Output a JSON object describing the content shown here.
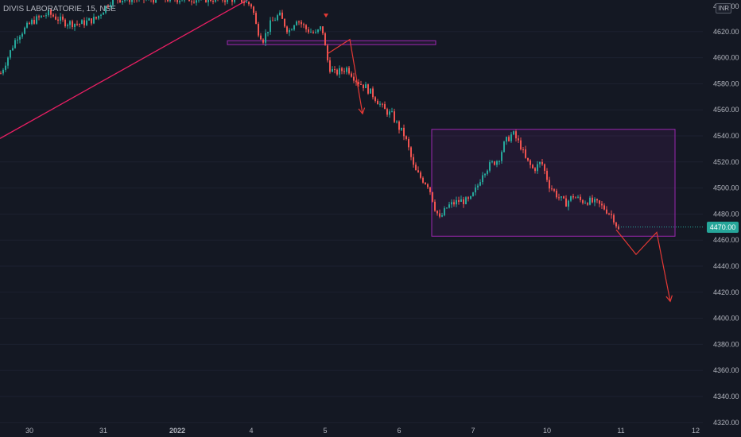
{
  "header": {
    "symbol": "DIVIS LABORATORIE, 15, NSE",
    "currency": "INR"
  },
  "last_price_label": "4470.00",
  "colors": {
    "background": "#141823",
    "up": "#26a69a",
    "down": "#ef5350",
    "trendline": "#e91e63",
    "box_stroke": "#9c27b0",
    "box_fill": "rgba(156,39,176,0.10)",
    "arrow": "#e53935",
    "axis_text": "#b2b5be"
  },
  "chart_data": {
    "type": "candlestick",
    "y_axis": {
      "side": "right",
      "ticks": [
        4620,
        4600,
        4580,
        4560,
        4540,
        4520,
        4500,
        4480,
        4460,
        4440,
        4420,
        4400,
        4380,
        4360,
        4340,
        4320
      ],
      "range": [
        4318,
        4642
      ]
    },
    "x_axis": {
      "tick_labels": [
        "30",
        "31",
        "2022",
        "4",
        "5",
        "6",
        "7",
        "10",
        "11",
        "12"
      ]
    },
    "last_price": 4470,
    "price_path": [
      [
        0,
        4588
      ],
      [
        20,
        4616
      ],
      [
        40,
        4628
      ],
      [
        60,
        4634
      ],
      [
        80,
        4627
      ],
      [
        100,
        4626
      ],
      [
        120,
        4630
      ],
      [
        140,
        4645
      ],
      [
        300,
        4645
      ],
      [
        316,
        4640
      ],
      [
        322,
        4622
      ],
      [
        330,
        4614
      ],
      [
        340,
        4627
      ],
      [
        350,
        4633
      ],
      [
        362,
        4620
      ],
      [
        372,
        4630
      ],
      [
        384,
        4622
      ],
      [
        396,
        4618
      ],
      [
        404,
        4624
      ],
      [
        410,
        4600
      ],
      [
        414,
        4592
      ],
      [
        420,
        4588
      ],
      [
        428,
        4590
      ],
      [
        436,
        4592
      ],
      [
        448,
        4582
      ],
      [
        458,
        4578
      ],
      [
        470,
        4570
      ],
      [
        482,
        4560
      ],
      [
        492,
        4556
      ],
      [
        500,
        4547
      ],
      [
        508,
        4540
      ],
      [
        514,
        4528
      ],
      [
        520,
        4514
      ],
      [
        528,
        4508
      ],
      [
        538,
        4502
      ],
      [
        546,
        4485
      ],
      [
        552,
        4476
      ],
      [
        562,
        4486
      ],
      [
        576,
        4490
      ],
      [
        590,
        4490
      ],
      [
        600,
        4502
      ],
      [
        606,
        4512
      ],
      [
        616,
        4518
      ],
      [
        626,
        4522
      ],
      [
        634,
        4535
      ],
      [
        644,
        4542
      ],
      [
        654,
        4532
      ],
      [
        660,
        4522
      ],
      [
        670,
        4514
      ],
      [
        680,
        4520
      ],
      [
        690,
        4502
      ],
      [
        700,
        4494
      ],
      [
        710,
        4488
      ],
      [
        720,
        4494
      ],
      [
        730,
        4490
      ],
      [
        740,
        4490
      ],
      [
        750,
        4488
      ],
      [
        760,
        4484
      ],
      [
        770,
        4478
      ],
      [
        778,
        4466
      ]
    ],
    "drawings": {
      "trendline": [
        [
          0,
          4538
        ],
        [
          316,
          4646
        ]
      ],
      "zone_line": {
        "price_top": 4613,
        "price_bottom": 4610,
        "x_from": 286,
        "x_to": 548
      },
      "range_box": {
        "price_top": 4545,
        "price_bottom": 4463,
        "x_from": 543,
        "x_to": 849
      },
      "arrow_small": [
        [
          412,
          4603
        ],
        [
          440,
          4614
        ],
        [
          456,
          4557
        ]
      ],
      "arrow_large": [
        [
          775,
          4468
        ],
        [
          800,
          4449
        ],
        [
          826,
          4466
        ],
        [
          843,
          4413
        ]
      ],
      "marker": [
        410,
        4632
      ]
    }
  }
}
